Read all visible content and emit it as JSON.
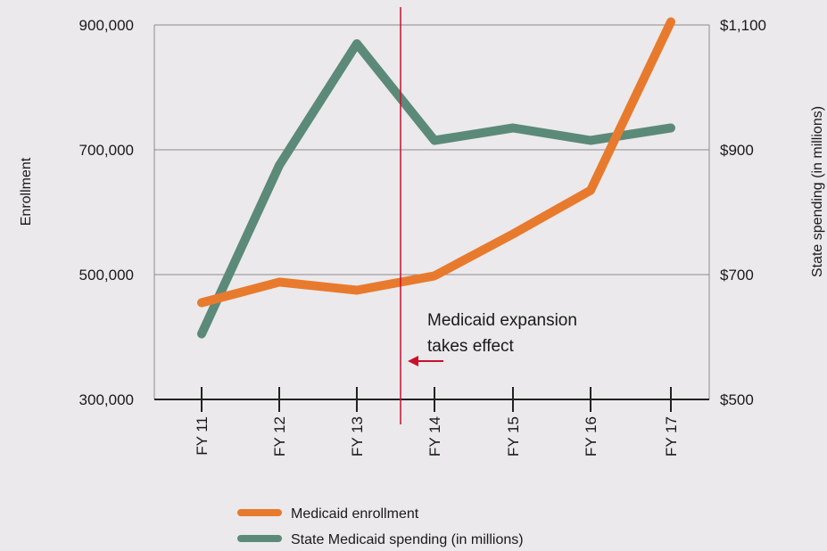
{
  "chart_data": {
    "type": "line",
    "categories": [
      "FY 11",
      "FY 12",
      "FY 13",
      "FY 14",
      "FY 15",
      "FY 16",
      "FY 17"
    ],
    "series": [
      {
        "name": "Medicaid enrollment",
        "axis": "left",
        "color": "#e87a2e",
        "values": [
          455000,
          488000,
          475000,
          498000,
          565000,
          635000,
          905000
        ]
      },
      {
        "name": "State Medicaid spending (in millions)",
        "axis": "right",
        "color": "#5c8a78",
        "values": [
          605,
          875,
          1070,
          915,
          935,
          915,
          935
        ]
      }
    ],
    "ylabel": "Enrollment",
    "y2label": "State spending (in millions)",
    "ylim": [
      300000,
      900000
    ],
    "y2lim": [
      500,
      1100
    ],
    "yticks": [
      "300,000",
      "500,000",
      "700,000",
      "900,000"
    ],
    "y2ticks": [
      "$500",
      "$700",
      "$900",
      "$1,100"
    ],
    "grid": "horizontal",
    "legend_position": "bottom-center",
    "annotation": {
      "line1": "Medicaid expansion",
      "line2": "takes effect",
      "marker_between": [
        "FY 13",
        "FY 14"
      ],
      "color": "#c8102e"
    }
  }
}
